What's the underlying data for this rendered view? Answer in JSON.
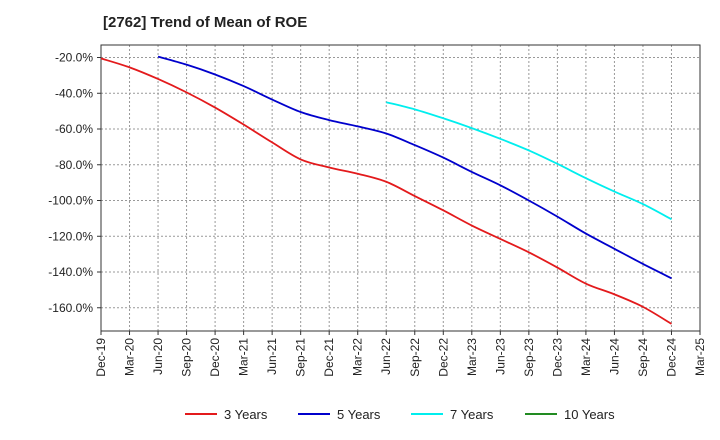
{
  "chart_data": {
    "type": "line",
    "title": "[2762]  Trend of Mean of ROE",
    "xlabel": "",
    "ylabel": "",
    "x_ticks": [
      "Dec-19",
      "Mar-20",
      "Jun-20",
      "Sep-20",
      "Dec-20",
      "Mar-21",
      "Jun-21",
      "Sep-21",
      "Dec-21",
      "Mar-22",
      "Jun-22",
      "Sep-22",
      "Dec-22",
      "Mar-23",
      "Jun-23",
      "Sep-23",
      "Dec-23",
      "Mar-24",
      "Jun-24",
      "Sep-24",
      "Dec-24",
      "Mar-25"
    ],
    "y_ticks": [
      -20,
      -40,
      -60,
      -80,
      -100,
      -120,
      -140,
      -160
    ],
    "y_tick_labels": [
      "-20.0%",
      "-40.0%",
      "-60.0%",
      "-80.0%",
      "-100.0%",
      "-120.0%",
      "-140.0%",
      "-160.0%"
    ],
    "ylim": [
      -173,
      -13
    ],
    "grid": true,
    "legend_position": "bottom",
    "series": [
      {
        "name": "3 Years",
        "color": "#e31a1c",
        "x": [
          "Dec-19",
          "Mar-20",
          "Jun-20",
          "Sep-20",
          "Dec-20",
          "Mar-21",
          "Jun-21",
          "Sep-21",
          "Dec-21",
          "Mar-22",
          "Jun-22",
          "Sep-22",
          "Dec-22",
          "Mar-23",
          "Jun-23",
          "Sep-23",
          "Dec-23",
          "Mar-24",
          "Jun-24",
          "Sep-24",
          "Dec-24"
        ],
        "values": [
          -20.5,
          -25.5,
          -32,
          -39.5,
          -48,
          -57.5,
          -67.5,
          -77,
          -81.5,
          -85,
          -89.5,
          -97.5,
          -105.5,
          -114,
          -121.5,
          -129,
          -137.5,
          -146.5,
          -152.5,
          -159.5,
          -169
        ]
      },
      {
        "name": "5 Years",
        "color": "#0000cc",
        "x": [
          "Jun-20",
          "Sep-20",
          "Dec-20",
          "Mar-21",
          "Jun-21",
          "Sep-21",
          "Dec-21",
          "Mar-22",
          "Jun-22",
          "Sep-22",
          "Dec-22",
          "Mar-23",
          "Jun-23",
          "Sep-23",
          "Dec-23",
          "Mar-24",
          "Jun-24",
          "Sep-24",
          "Dec-24"
        ],
        "values": [
          -19.5,
          -24,
          -29.5,
          -36,
          -43.5,
          -50.5,
          -55,
          -58.5,
          -62.5,
          -69,
          -76,
          -84,
          -91.5,
          -100,
          -109,
          -118.5,
          -127,
          -135.5,
          -143.5
        ]
      },
      {
        "name": "7 Years",
        "color": "#00eeee",
        "x": [
          "Jun-22",
          "Sep-22",
          "Dec-22",
          "Mar-23",
          "Jun-23",
          "Sep-23",
          "Dec-23",
          "Mar-24",
          "Jun-24",
          "Sep-24",
          "Dec-24"
        ],
        "values": [
          -45,
          -49,
          -54,
          -59.5,
          -65.5,
          -72,
          -79.5,
          -87.5,
          -95,
          -102,
          -110.5
        ]
      },
      {
        "name": "10 Years",
        "color": "#228b22",
        "x": [],
        "values": []
      }
    ]
  }
}
